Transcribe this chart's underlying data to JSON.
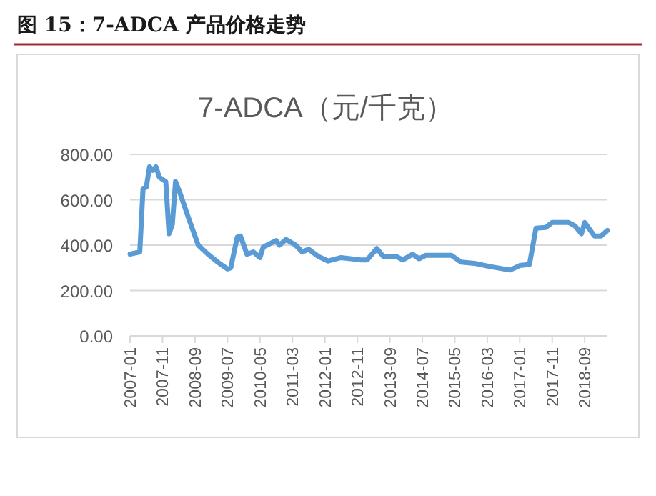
{
  "chart_data": {
    "type": "line",
    "title": "图 15：7-ADCA 产品价格走势",
    "subtitle": "7-ADCA（元/千克）",
    "x": [
      "2007-01",
      "2007-04",
      "2007-05",
      "2007-06",
      "2007-07",
      "2007-08",
      "2007-09",
      "2007-10",
      "2007-12",
      "2008-01",
      "2008-02",
      "2008-03",
      "2008-04",
      "2008-07",
      "2008-10",
      "2009-01",
      "2009-04",
      "2009-07",
      "2009-08",
      "2009-10",
      "2009-11",
      "2010-01",
      "2010-03",
      "2010-05",
      "2010-06",
      "2010-10",
      "2010-11",
      "2011-01",
      "2011-04",
      "2011-06",
      "2011-08",
      "2011-11",
      "2012-02",
      "2012-06",
      "2012-12",
      "2013-02",
      "2013-05",
      "2013-07",
      "2013-11",
      "2014-01",
      "2014-04",
      "2014-06",
      "2014-08",
      "2015-04",
      "2015-07",
      "2015-11",
      "2016-04",
      "2016-10",
      "2017-01",
      "2017-04",
      "2017-06",
      "2017-09",
      "2017-11",
      "2018-04",
      "2018-06",
      "2018-08",
      "2018-09",
      "2018-12",
      "2019-02",
      "2019-04"
    ],
    "series": [
      {
        "color": "#5b9bd5",
        "values": [
          360,
          370,
          650,
          655,
          745,
          730,
          745,
          700,
          680,
          450,
          490,
          680,
          645,
          520,
          400,
          360,
          325,
          295,
          300,
          435,
          440,
          360,
          370,
          345,
          392,
          420,
          400,
          425,
          400,
          370,
          382,
          350,
          330,
          345,
          335,
          335,
          385,
          350,
          350,
          335,
          360,
          340,
          355,
          355,
          325,
          320,
          305,
          290,
          310,
          315,
          475,
          478,
          500,
          500,
          485,
          450,
          500,
          440,
          440,
          465
        ]
      }
    ],
    "xlim": [
      "2007-01",
      "2019-04"
    ],
    "ylim": [
      0,
      800
    ],
    "xticks": [
      "2007-01",
      "2007-11",
      "2008-09",
      "2009-07",
      "2010-05",
      "2011-03",
      "2012-01",
      "2012-11",
      "2013-09",
      "2014-07",
      "2015-05",
      "2016-03",
      "2017-01",
      "2017-11",
      "2018-09"
    ],
    "yticks": [
      {
        "value": 0,
        "label": "0.00"
      },
      {
        "value": 200,
        "label": "200.00"
      },
      {
        "value": 400,
        "label": "400.00"
      },
      {
        "value": 600,
        "label": "600.00"
      },
      {
        "value": 800,
        "label": "800.00"
      }
    ],
    "grid": "y",
    "marker": "none",
    "line_style": "solid"
  }
}
